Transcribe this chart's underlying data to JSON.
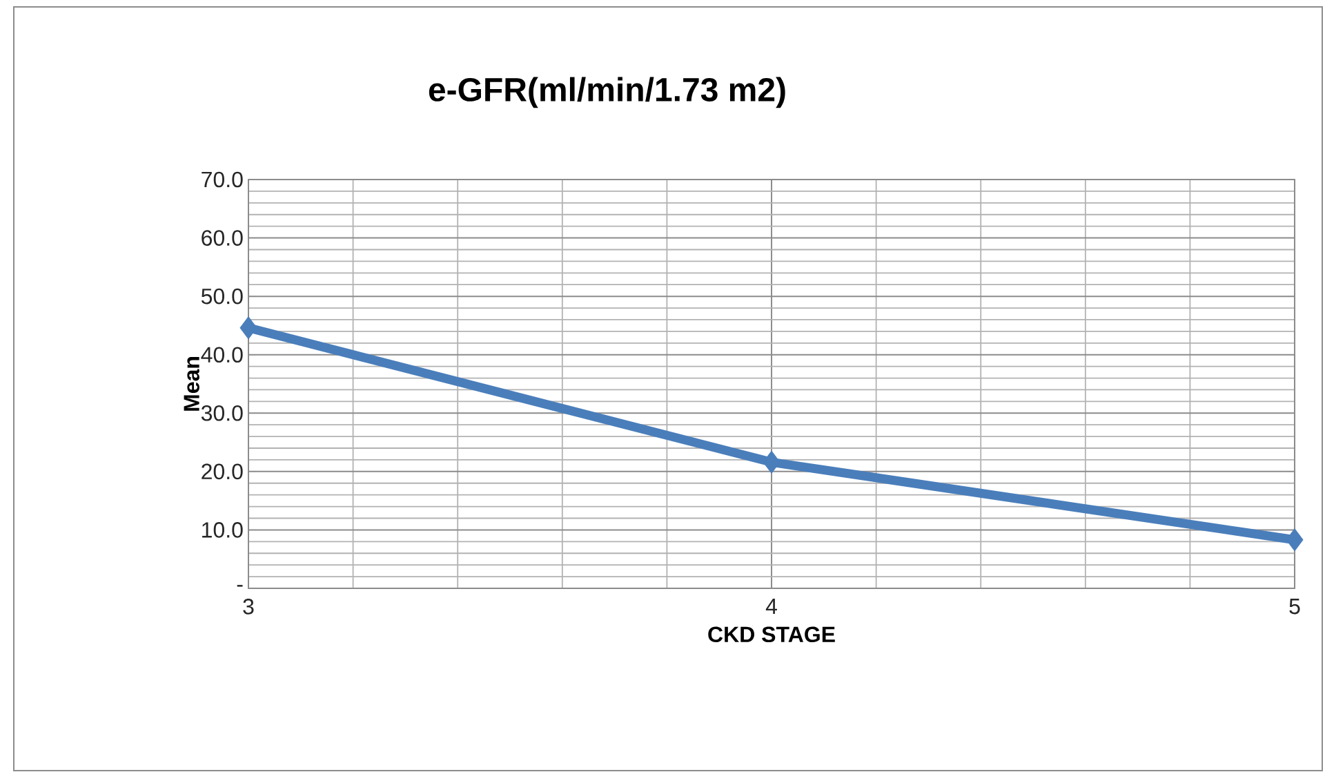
{
  "chart_data": {
    "type": "line",
    "title": "e-GFR(ml/min/1.73 m2)",
    "xlabel": "CKD STAGE",
    "ylabel": "Mean",
    "categories": [
      "3",
      "4",
      "5"
    ],
    "series": [
      {
        "color": "#4a7ebb",
        "values": [
          44.6,
          21.6,
          8.3
        ]
      }
    ],
    "ylim": [
      0,
      70
    ],
    "yticks": [
      {
        "value": 0,
        "label": "-"
      },
      {
        "value": 10,
        "label": "10.0"
      },
      {
        "value": 20,
        "label": "20.0"
      },
      {
        "value": 30,
        "label": "30.0"
      },
      {
        "value": 40,
        "label": "40.0"
      },
      {
        "value": 50,
        "label": "50.0"
      },
      {
        "value": 60,
        "label": "60.0"
      },
      {
        "value": 70,
        "label": "70.0"
      }
    ],
    "grid": true,
    "marker": "diamond"
  }
}
